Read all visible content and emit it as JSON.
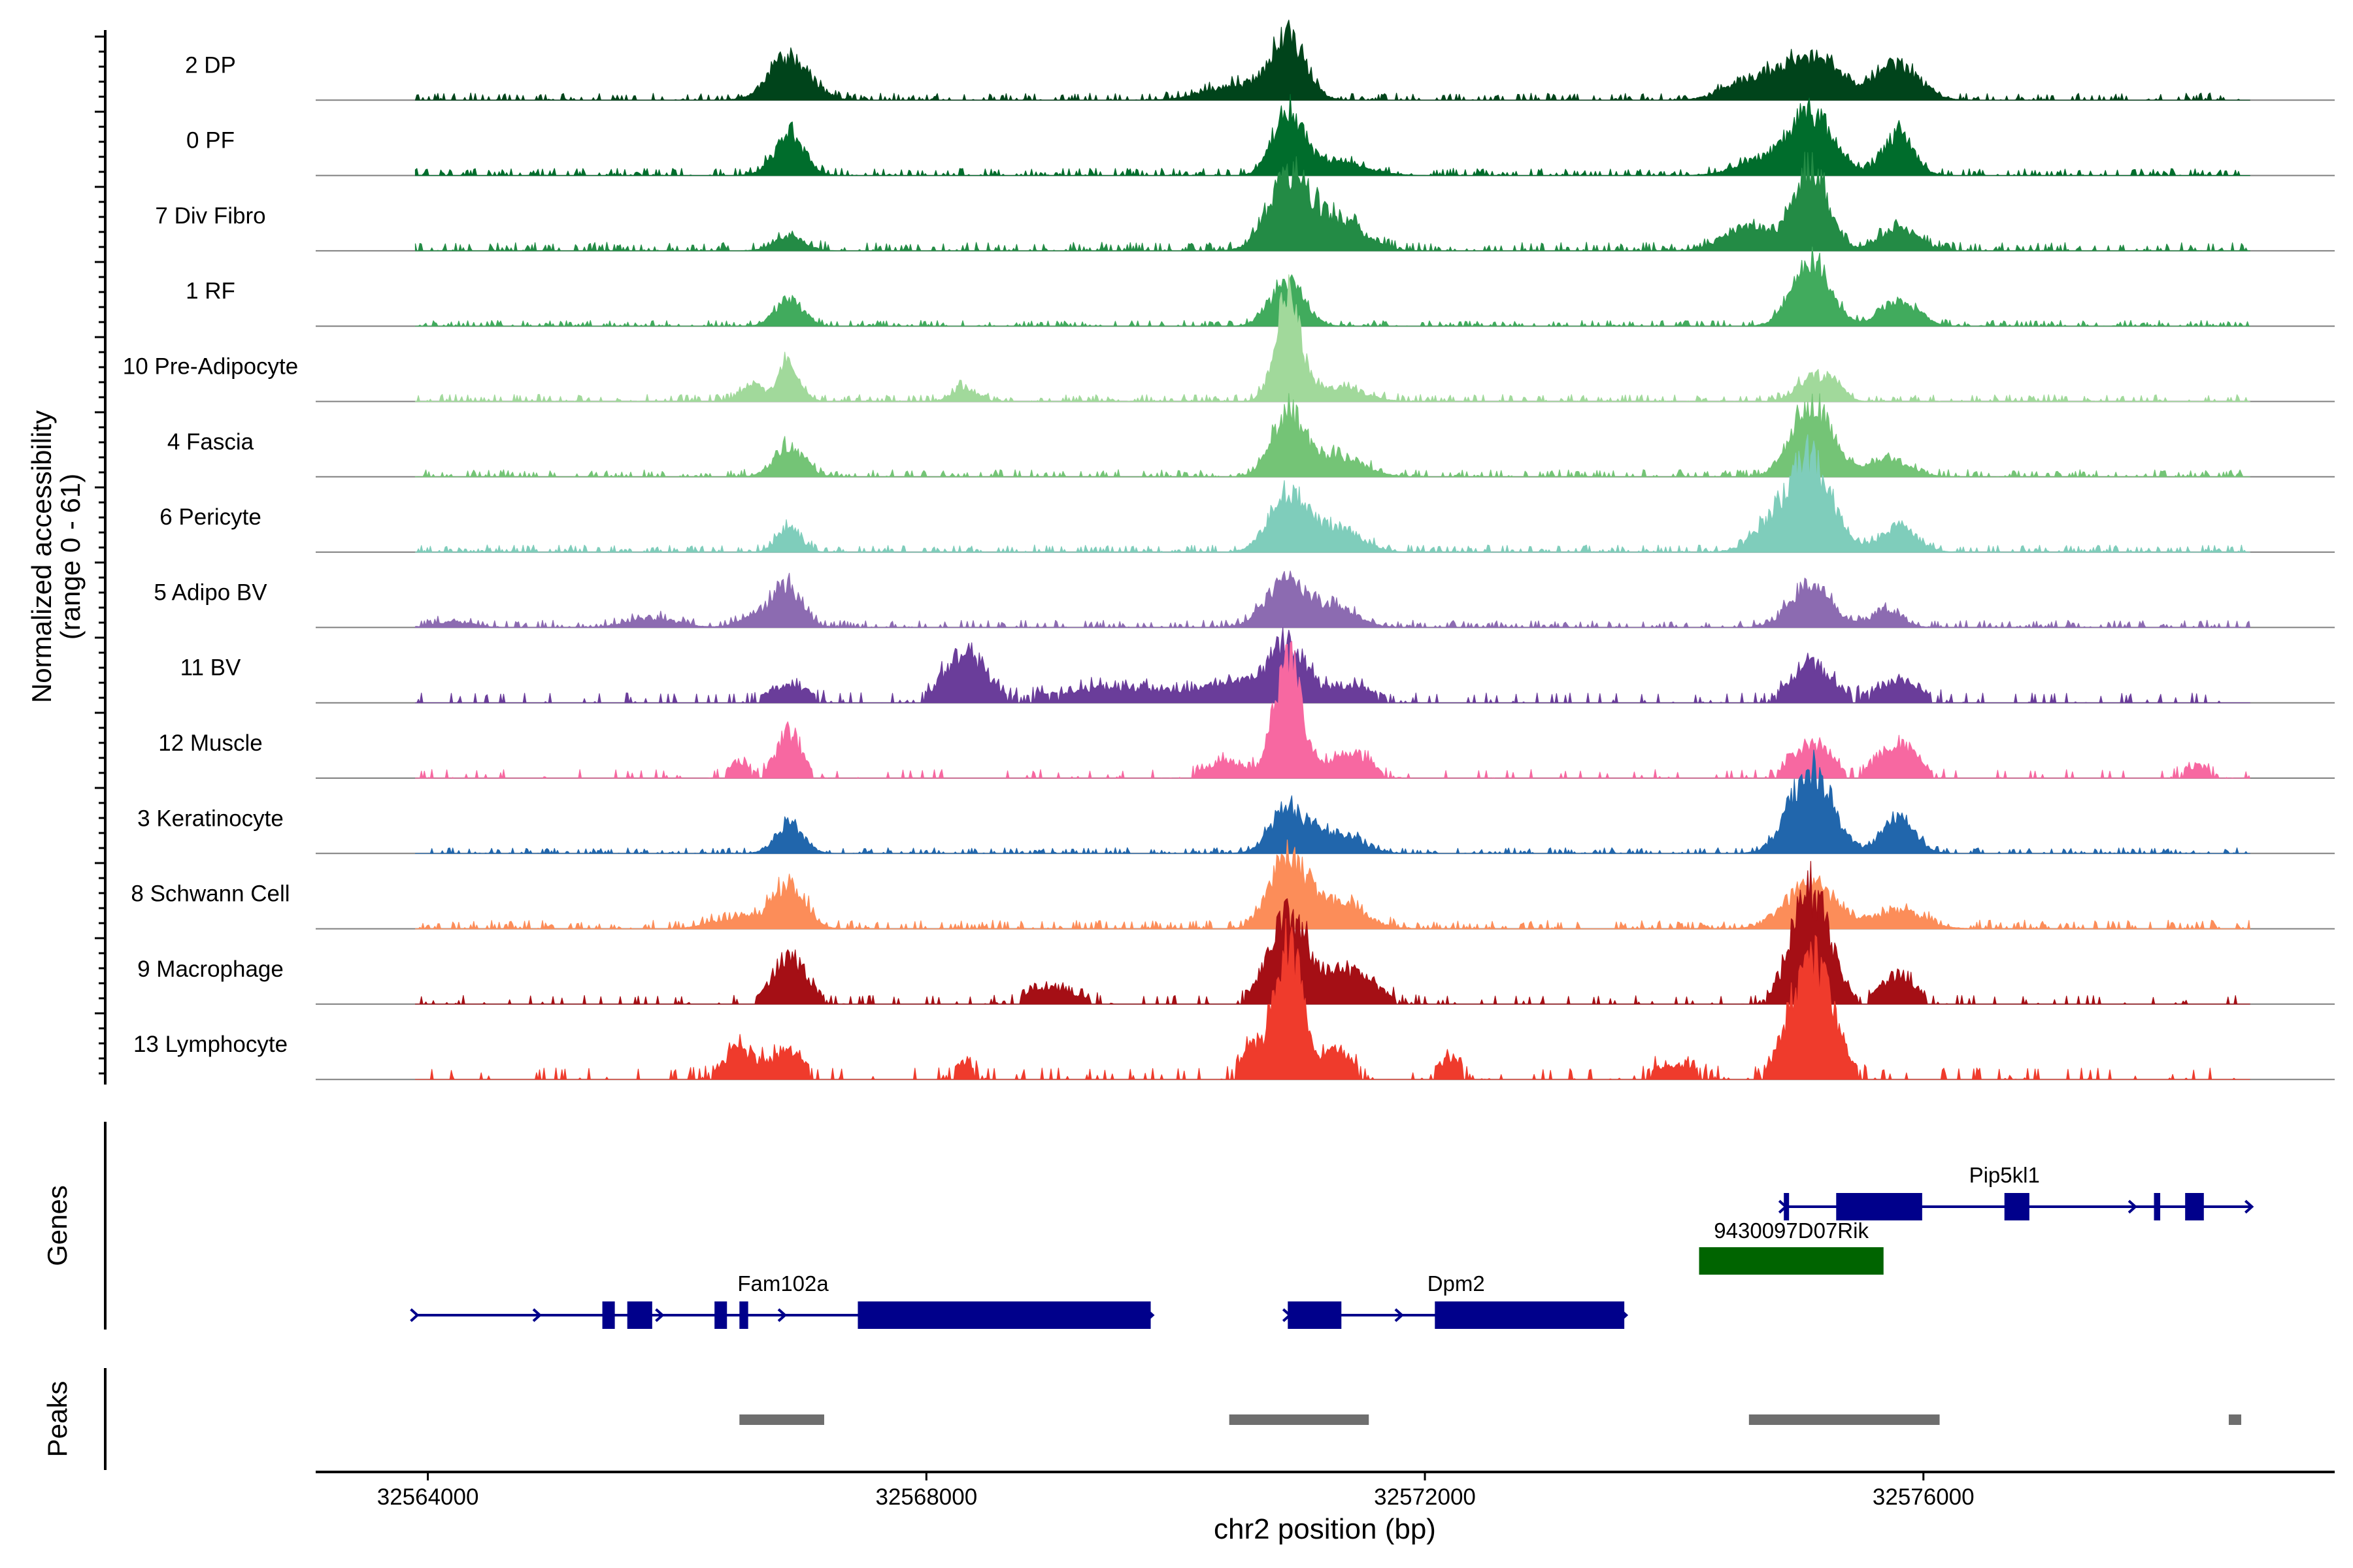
{
  "chart_data": {
    "type": "area",
    "title": "",
    "y_axis_title_line1": "Normalized accessibility",
    "y_axis_title_line2": "(range 0 - 61)",
    "genes_label": "Genes",
    "peaks_label": "Peaks",
    "xlabel": "chr2 position (bp)",
    "xlim": [
      32563100,
      32579300
    ],
    "ylim": [
      0,
      61
    ],
    "x_ticks": [
      {
        "value": 32564000,
        "label": "32564000"
      },
      {
        "value": 32568000,
        "label": "32568000"
      },
      {
        "value": 32572000,
        "label": "32572000"
      },
      {
        "value": 32576000,
        "label": "32576000"
      }
    ],
    "region": {
      "start": 32563900,
      "end": 32578620
    },
    "tracks": [
      {
        "name": "2 DP",
        "color": "#00441b",
        "peaks": [
          [
            32566900,
            30,
            160
          ],
          [
            32570900,
            40,
            140
          ],
          [
            32570500,
            10,
            250
          ],
          [
            32575100,
            30,
            240
          ],
          [
            32575800,
            24,
            170
          ],
          [
            32574600,
            12,
            200
          ]
        ],
        "noise": 2.5,
        "bars": false
      },
      {
        "name": "0 PF",
        "color": "#006d2c",
        "peaks": [
          [
            32566900,
            28,
            120
          ],
          [
            32570900,
            44,
            120
          ],
          [
            32571300,
            10,
            220
          ],
          [
            32575100,
            42,
            180
          ],
          [
            32575800,
            28,
            120
          ],
          [
            32574700,
            10,
            200
          ]
        ],
        "noise": 2.5,
        "bars": false
      },
      {
        "name": "7 Div Fibro",
        "color": "#238b45",
        "peaks": [
          [
            32566900,
            10,
            120
          ],
          [
            32570900,
            50,
            160
          ],
          [
            32571300,
            22,
            200
          ],
          [
            32575100,
            55,
            140
          ],
          [
            32574600,
            16,
            200
          ],
          [
            32575800,
            16,
            150
          ]
        ],
        "noise": 3,
        "bars": false
      },
      {
        "name": "1 RF",
        "color": "#41ab5d",
        "peaks": [
          [
            32566900,
            18,
            110
          ],
          [
            32570900,
            32,
            130
          ],
          [
            32575100,
            44,
            150
          ],
          [
            32575800,
            18,
            150
          ]
        ],
        "noise": 2,
        "bars": false
      },
      {
        "name": "10 Pre-Adipocyte",
        "color": "#a1d99b",
        "peaks": [
          [
            32566900,
            26,
            90
          ],
          [
            32566600,
            12,
            80
          ],
          [
            32568300,
            10,
            90
          ],
          [
            32570900,
            70,
            100
          ],
          [
            32571300,
            10,
            200
          ],
          [
            32575100,
            16,
            120
          ],
          [
            32575300,
            10,
            80
          ]
        ],
        "noise": 2.5,
        "bars": false
      },
      {
        "name": "4 Fascia",
        "color": "#74c476",
        "peaks": [
          [
            32566900,
            20,
            120
          ],
          [
            32570900,
            42,
            130
          ],
          [
            32571300,
            14,
            200
          ],
          [
            32575100,
            52,
            150
          ],
          [
            32575700,
            12,
            180
          ]
        ],
        "noise": 2.5,
        "bars": false
      },
      {
        "name": "6 Pericyte",
        "color": "#7fcdbb",
        "peaks": [
          [
            32566900,
            18,
            90
          ],
          [
            32570900,
            40,
            150
          ],
          [
            32571300,
            16,
            180
          ],
          [
            32575100,
            60,
            170
          ],
          [
            32574800,
            18,
            160
          ],
          [
            32575800,
            18,
            140
          ]
        ],
        "noise": 2.5,
        "bars": false
      },
      {
        "name": "5 Adipo BV",
        "color": "#8c6bb1",
        "peaks": [
          [
            32566900,
            24,
            110
          ],
          [
            32566700,
            10,
            150
          ],
          [
            32570900,
            32,
            170
          ],
          [
            32571300,
            12,
            170
          ],
          [
            32575100,
            30,
            160
          ],
          [
            32575700,
            12,
            120
          ],
          [
            32564200,
            4,
            150
          ],
          [
            32565800,
            6,
            200
          ]
        ],
        "noise": 2.5,
        "bars": false
      },
      {
        "name": "11 BV",
        "color": "#6a3d9a",
        "peaks": [
          [
            32566900,
            12,
            160
          ],
          [
            32568300,
            34,
            160
          ],
          [
            32569600,
            10,
            600
          ],
          [
            32570500,
            12,
            200
          ],
          [
            32570900,
            40,
            140
          ],
          [
            32571400,
            12,
            200
          ],
          [
            32575100,
            26,
            160
          ],
          [
            32575800,
            14,
            200
          ]
        ],
        "noise": 3.5,
        "bars": true
      },
      {
        "name": "12 Muscle",
        "color": "#f768a1",
        "peaks": [
          [
            32566900,
            30,
            100
          ],
          [
            32566500,
            12,
            80
          ],
          [
            32570900,
            84,
            110
          ],
          [
            32571400,
            18,
            150
          ],
          [
            32570400,
            12,
            150
          ],
          [
            32575100,
            24,
            150
          ],
          [
            32575800,
            24,
            150
          ],
          [
            32578200,
            8,
            100
          ]
        ],
        "noise": 3,
        "bars": true
      },
      {
        "name": "3 Keratinocyte",
        "color": "#2166ac",
        "peaks": [
          [
            32566900,
            20,
            110
          ],
          [
            32570900,
            30,
            140
          ],
          [
            32571300,
            14,
            180
          ],
          [
            32575100,
            58,
            170
          ],
          [
            32575800,
            24,
            130
          ]
        ],
        "noise": 2,
        "bars": false
      },
      {
        "name": "8 Schwann Cell",
        "color": "#fc8d59",
        "peaks": [
          [
            32566900,
            30,
            130
          ],
          [
            32570900,
            50,
            140
          ],
          [
            32571300,
            18,
            200
          ],
          [
            32575100,
            30,
            200
          ],
          [
            32575800,
            12,
            200
          ],
          [
            32566500,
            8,
            200
          ]
        ],
        "noise": 3,
        "bars": false
      },
      {
        "name": "9 Macrophage",
        "color": "#a50f15",
        "peaks": [
          [
            32566900,
            32,
            140
          ],
          [
            32570900,
            58,
            160
          ],
          [
            32571400,
            22,
            200
          ],
          [
            32575100,
            80,
            150
          ],
          [
            32575800,
            20,
            140
          ],
          [
            32569000,
            10,
            200
          ]
        ],
        "noise": 3,
        "bars": true
      },
      {
        "name": "13 Lymphocyte",
        "color": "#ef3b2c",
        "peaks": [
          [
            32566500,
            20,
            140
          ],
          [
            32566900,
            20,
            120
          ],
          [
            32570900,
            96,
            110
          ],
          [
            32570600,
            20,
            80
          ],
          [
            32571300,
            20,
            120
          ],
          [
            32575100,
            82,
            170
          ],
          [
            32572200,
            14,
            100
          ],
          [
            32568300,
            12,
            80
          ],
          [
            32574000,
            10,
            200
          ]
        ],
        "noise": 4,
        "bars": true
      }
    ],
    "genes": [
      {
        "name": "Fam102a",
        "strand": "+",
        "start": 32563900,
        "end": 32569800,
        "row": "lower",
        "color": "#00008b",
        "blocks": [
          [
            32565400,
            32565500
          ],
          [
            32565600,
            32565800
          ],
          [
            32566300,
            32566400
          ],
          [
            32566500,
            32566570
          ],
          [
            32567450,
            32569800
          ]
        ],
        "label_pos": 32566850
      },
      {
        "name": "Dpm2",
        "strand": "+",
        "start": 32570900,
        "end": 32573600,
        "row": "lower",
        "color": "#00008b",
        "blocks": [
          [
            32570900,
            32571330
          ],
          [
            32572080,
            32573600
          ]
        ],
        "label_pos": 32572250
      },
      {
        "name": "9430097D07Rik",
        "strand": "none",
        "start": 32574200,
        "end": 32575680,
        "row": "middle",
        "color": "#006400",
        "blocks": [
          [
            32574200,
            32575680
          ]
        ],
        "label_pos": 32574940
      },
      {
        "name": "Pip5kl1",
        "strand": "+",
        "start": 32574880,
        "end": 32578620,
        "row": "upper",
        "color": "#00008b",
        "blocks": [
          [
            32574880,
            32574910
          ],
          [
            32575300,
            32575990
          ],
          [
            32576650,
            32576850
          ],
          [
            32577850,
            32577900
          ],
          [
            32578100,
            32578250
          ]
        ],
        "label_pos": 32576650
      }
    ],
    "peaks": [
      [
        32566500,
        32567180
      ],
      [
        32570430,
        32571550
      ],
      [
        32574600,
        32576130
      ],
      [
        32578450,
        32578550
      ]
    ]
  }
}
